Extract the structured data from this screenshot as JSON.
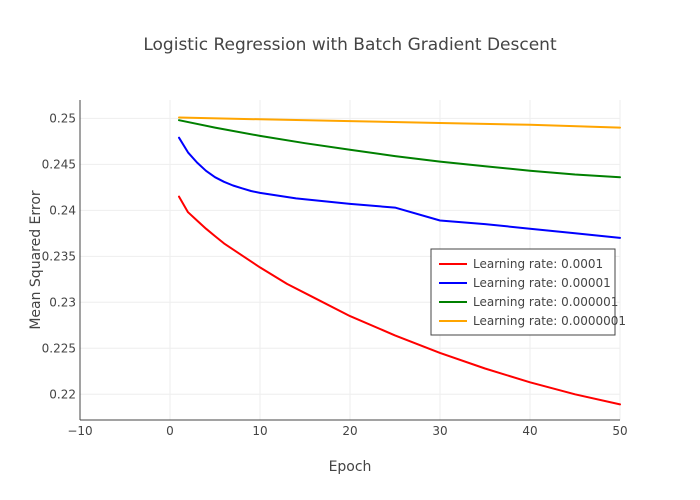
{
  "chart_data": {
    "type": "line",
    "title": "Logistic Regression with Batch Gradient Descent",
    "xlabel": "Epoch",
    "ylabel": "Mean Squared Error",
    "xlim": [
      -10,
      50
    ],
    "ylim": [
      0.2172,
      0.252
    ],
    "x_ticks": [
      -10,
      0,
      10,
      20,
      30,
      40,
      50
    ],
    "x_tick_labels": [
      "−10",
      "0",
      "10",
      "20",
      "30",
      "40",
      "50"
    ],
    "y_ticks": [
      0.22,
      0.225,
      0.23,
      0.235,
      0.24,
      0.245,
      0.25
    ],
    "y_tick_labels": [
      "0.22",
      "0.225",
      "0.23",
      "0.235",
      "0.24",
      "0.245",
      "0.25"
    ],
    "grid": true,
    "legend_position": "right",
    "series": [
      {
        "name": "Learning rate: 0.0001",
        "color": "#ff0000",
        "x": [
          1,
          2,
          3,
          4,
          5,
          6,
          8,
          10,
          13,
          16,
          20,
          25,
          30,
          35,
          40,
          45,
          50
        ],
        "y": [
          0.2415,
          0.2398,
          0.2389,
          0.238,
          0.2372,
          0.2364,
          0.2351,
          0.2338,
          0.232,
          0.2305,
          0.2285,
          0.2264,
          0.2245,
          0.2228,
          0.2213,
          0.22,
          0.2189
        ]
      },
      {
        "name": "Learning rate: 0.00001",
        "color": "#0000ff",
        "x": [
          1,
          2,
          3,
          4,
          5,
          6,
          7,
          8,
          9,
          10,
          12,
          14,
          17,
          20,
          25,
          30,
          35,
          40,
          45,
          50
        ],
        "y": [
          0.2479,
          0.2463,
          0.2452,
          0.2443,
          0.2436,
          0.2431,
          0.2427,
          0.2424,
          0.2421,
          0.2419,
          0.2416,
          0.2413,
          0.241,
          0.2407,
          0.2403,
          0.2389,
          0.2385,
          0.238,
          0.2375,
          0.237
        ]
      },
      {
        "name": "Learning rate: 0.000001",
        "color": "#008000",
        "x": [
          1,
          5,
          10,
          15,
          20,
          25,
          30,
          35,
          40,
          45,
          50
        ],
        "y": [
          0.2498,
          0.249,
          0.2481,
          0.2473,
          0.2466,
          0.2459,
          0.2453,
          0.2448,
          0.2443,
          0.2439,
          0.2436
        ]
      },
      {
        "name": "Learning rate: 0.0000001",
        "color": "#ffa500",
        "x": [
          1,
          10,
          20,
          30,
          40,
          50
        ],
        "y": [
          0.2501,
          0.2499,
          0.2497,
          0.2495,
          0.2493,
          0.249
        ]
      }
    ]
  }
}
